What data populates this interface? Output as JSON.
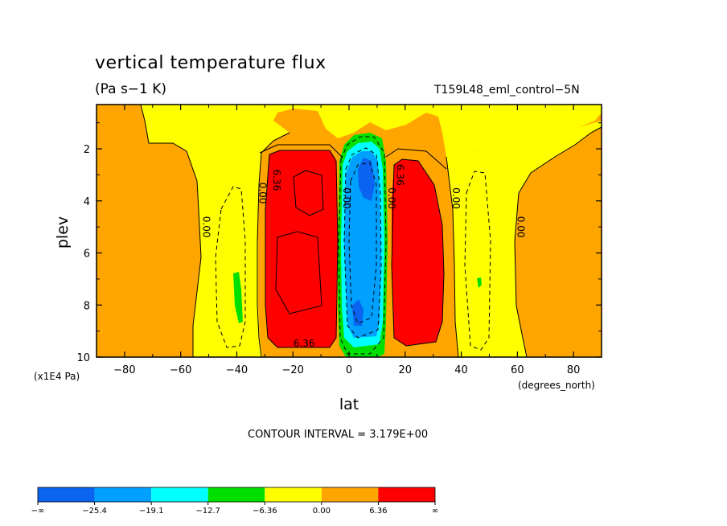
{
  "chart_data": {
    "type": "heatmap",
    "title": "vertical temperature flux",
    "units": "(Pa s−1 K)",
    "run_label": "T159L48_eml_control−5N",
    "xlabel": "lat",
    "x_units": "(degrees_north)",
    "ylabel": "plev",
    "y_units": "(x1E4 Pa)",
    "xlim": [
      -90,
      90
    ],
    "ylim": [
      10,
      0.3
    ],
    "x_ticks": [
      -80,
      -60,
      -40,
      -20,
      0,
      20,
      40,
      60,
      80
    ],
    "x_tick_labels": [
      "−80",
      "−60",
      "−40",
      "−20",
      "0",
      "20",
      "40",
      "60",
      "80"
    ],
    "y_ticks": [
      2,
      4,
      6,
      8,
      10
    ],
    "y_tick_labels": [
      "2",
      "4",
      "6",
      "8",
      "10"
    ],
    "contour_interval_text": "CONTOUR INTERVAL = 3.179E+00",
    "contour_labels": [
      {
        "text": "0.00",
        "lat": -52,
        "plev": 5.0,
        "rotate": true
      },
      {
        "text": "0.00",
        "lat": -32,
        "plev": 3.7,
        "rotate": true
      },
      {
        "text": "6.36",
        "lat": -27,
        "plev": 3.2,
        "rotate": true
      },
      {
        "text": "6.36",
        "lat": -16,
        "plev": 9.6,
        "rotate": false
      },
      {
        "text": "0.00",
        "lat": -2,
        "plev": 3.9,
        "rotate": true
      },
      {
        "text": "0.00",
        "lat": 14,
        "plev": 3.9,
        "rotate": true
      },
      {
        "text": "6.36",
        "lat": 17,
        "plev": 3.0,
        "rotate": true
      },
      {
        "text": "0.00",
        "lat": 37,
        "plev": 3.9,
        "rotate": true
      },
      {
        "text": "0.00",
        "lat": 60,
        "plev": 5.0,
        "rotate": true
      }
    ],
    "legend": {
      "bounds": [
        "−∞",
        "−25.4",
        "−19.1",
        "−12.7",
        "−6.36",
        "0.00",
        "6.36",
        "∞"
      ],
      "colors": [
        "#0a64f0",
        "#00a0ff",
        "#00ffff",
        "#00e000",
        "#ffff00",
        "#ffa500",
        "#ff0000"
      ]
    },
    "colors": {
      "very_negative": "#0a64f0",
      "negative_strong": "#00a0ff",
      "negative_mid": "#00ffff",
      "negative_weak": "#00e000",
      "near_zero_neg": "#ffff00",
      "near_zero_pos": "#ffa500",
      "positive": "#ff0000"
    },
    "grid": false
  }
}
